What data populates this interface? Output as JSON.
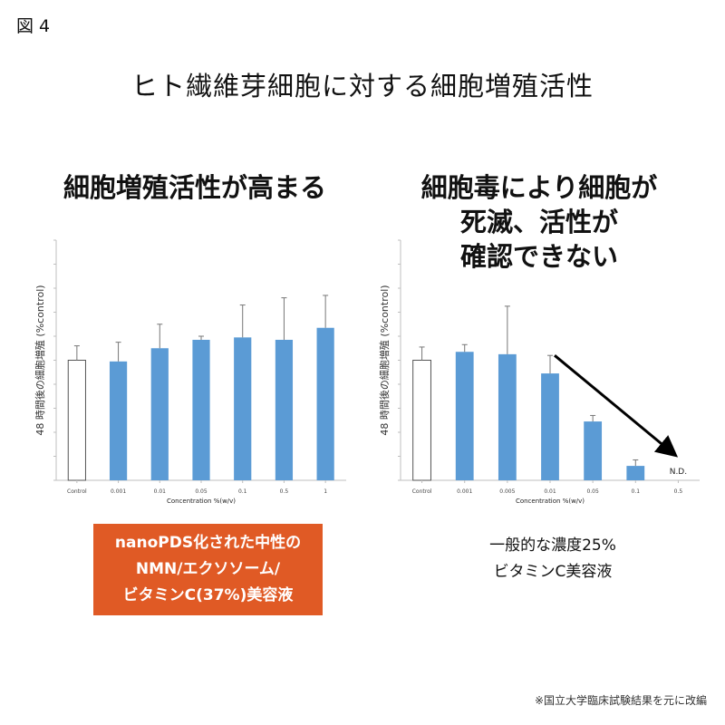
{
  "figure_label": "図 4",
  "title": "ヒト繊維芽細胞に対する細胞増殖活性",
  "left_panel": {
    "heading": "細胞増殖活性が高まる",
    "product_lines": [
      "nanoPDS化された中性の",
      "NMN/エクソソーム/",
      "ビタミンC(37%)美容液"
    ]
  },
  "right_panel": {
    "heading_lines": [
      "細胞毒により細胞が",
      "死滅、活性が",
      "確認できない"
    ],
    "product_lines": [
      "一般的な濃度25%",
      "ビタミンC美容液"
    ]
  },
  "footnote": "※国立大学臨床試験結果を元に改編",
  "colors": {
    "bar": "#5b9bd5",
    "control_fill": "#ffffff",
    "product_box": "#e05a25",
    "arrow": "#000000"
  },
  "chart_data": [
    {
      "type": "bar",
      "title": "細胞増殖活性が高まる",
      "xlabel": "Concentration %(w/v)",
      "ylabel": "48 時間後の細胞増殖 (%control)",
      "categories": [
        "Control",
        "0.001",
        "0.01",
        "0.05",
        "0.1",
        "0.5",
        "1"
      ],
      "values": [
        100,
        99,
        110,
        117,
        119,
        117,
        127
      ],
      "errors": [
        12,
        16,
        20,
        3,
        27,
        35,
        27
      ],
      "ylim": [
        0,
        200
      ],
      "grid": false,
      "legend": "none"
    },
    {
      "type": "bar",
      "title": "細胞毒により細胞が死滅、活性が確認できない",
      "xlabel": "Concentration %(w/v)",
      "ylabel": "48 時間後の細胞増殖 (%control)",
      "categories": [
        "Control",
        "0.001",
        "0.005",
        "0.01",
        "0.05",
        "0.1",
        "0.5"
      ],
      "values": [
        100,
        107,
        105,
        89,
        49,
        12,
        null
      ],
      "errors": [
        11,
        6,
        40,
        15,
        5,
        5,
        null
      ],
      "annotations": [
        {
          "category": "0.5",
          "text": "N.D."
        }
      ],
      "ylim": [
        0,
        200
      ],
      "grid": false,
      "legend": "none"
    }
  ]
}
